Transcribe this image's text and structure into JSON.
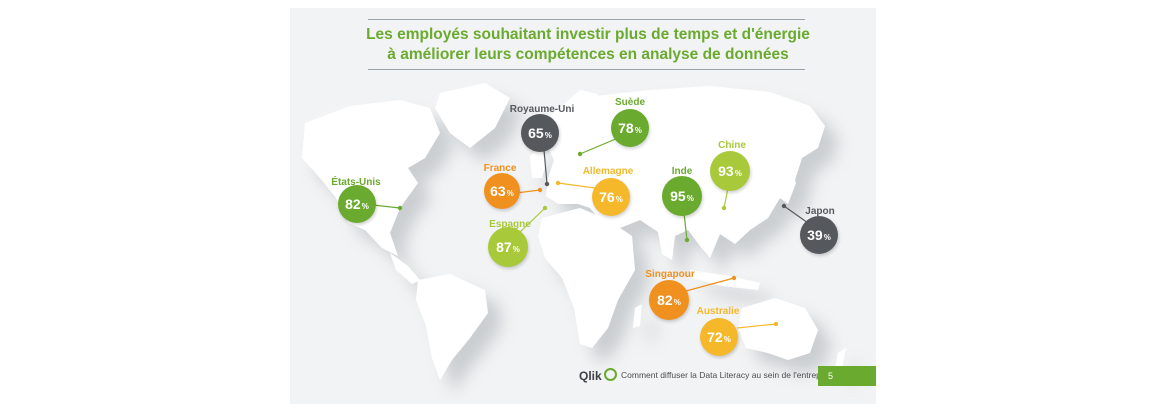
{
  "title": {
    "line1": "Les employés souhaitant investir plus de temps et d'énergie",
    "line2": "à améliorer leurs compétences en analyse de données"
  },
  "countries": [
    {
      "name": "États-Unis",
      "value": "82",
      "percent": "%",
      "color": "#6aaa2e"
    },
    {
      "name": "Royaume-Uni",
      "value": "65",
      "percent": "%",
      "color": "#55595d"
    },
    {
      "name": "Suède",
      "value": "78",
      "percent": "%",
      "color": "#6aaa2e"
    },
    {
      "name": "France",
      "value": "63",
      "percent": "%",
      "color": "#f0901e"
    },
    {
      "name": "Allemagne",
      "value": "76",
      "percent": "%",
      "color": "#f5b82a"
    },
    {
      "name": "Espagne",
      "value": "87",
      "percent": "%",
      "color": "#a8c93a"
    },
    {
      "name": "Inde",
      "value": "95",
      "percent": "%",
      "color": "#6aaa2e"
    },
    {
      "name": "Chine",
      "value": "93",
      "percent": "%",
      "color": "#a8c93a"
    },
    {
      "name": "Japon",
      "value": "39",
      "percent": "%",
      "color": "#55595d"
    },
    {
      "name": "Singapour",
      "value": "82",
      "percent": "%",
      "color": "#f0901e"
    },
    {
      "name": "Australie",
      "value": "72",
      "percent": "%",
      "color": "#f5b82a"
    }
  ],
  "footer": {
    "logo": "Qlik",
    "text": "Comment diffuser la Data Literacy au sein de l'entreprise",
    "page": "5"
  }
}
